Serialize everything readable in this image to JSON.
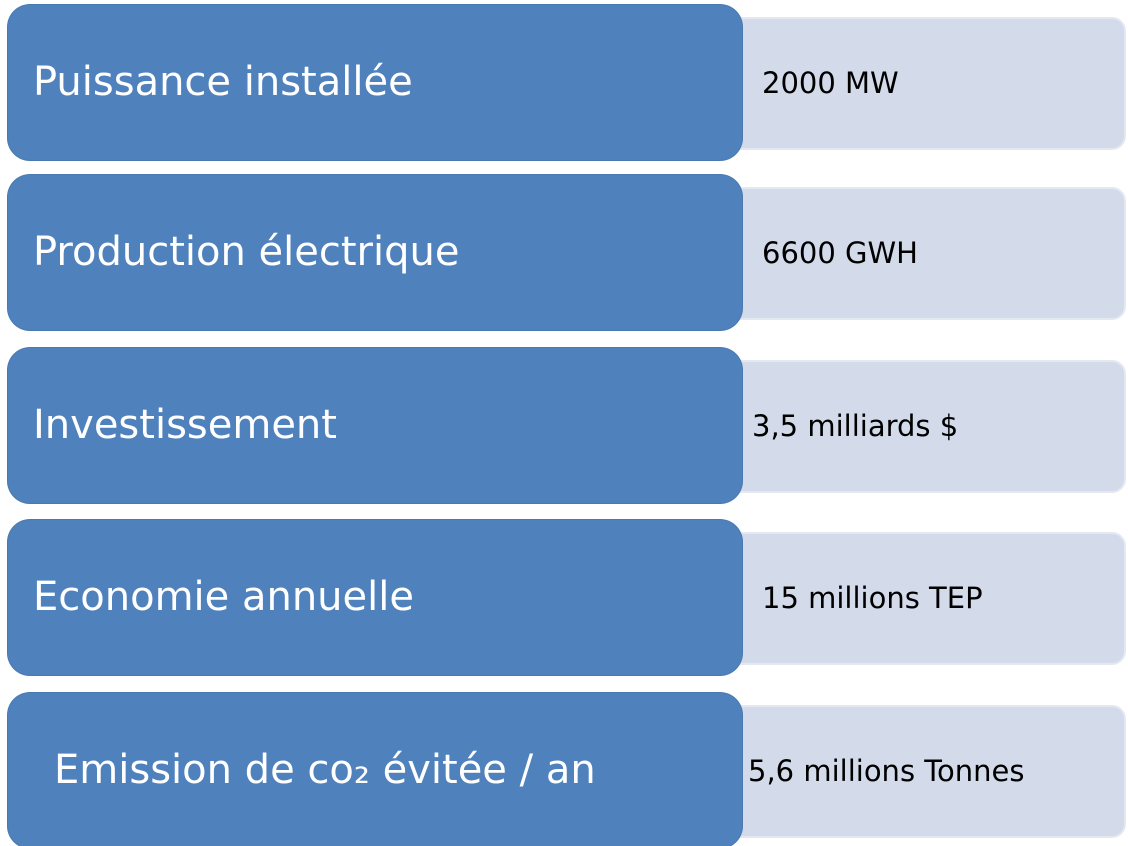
{
  "items": [
    {
      "label": "Puissance installée",
      "value": "2000 MW"
    },
    {
      "label": "Production électrique",
      "value": "6600 GWH"
    },
    {
      "label": "Investissement",
      "value": "3,5 milliards $"
    },
    {
      "label": "Economie annuelle",
      "value": "15 millions TEP"
    },
    {
      "label": "Emission de co₂ évitée / an",
      "value": "5,6 millions Tonnes"
    }
  ]
}
